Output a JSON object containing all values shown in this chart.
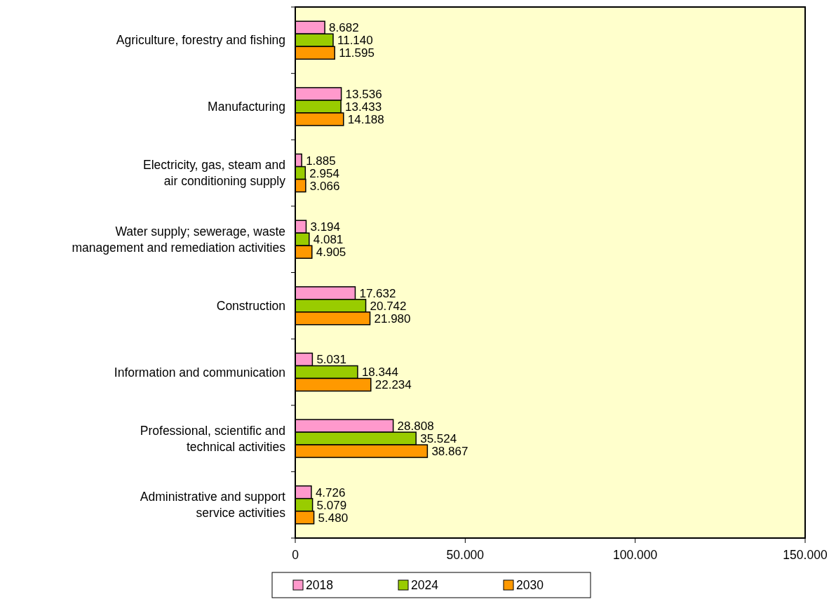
{
  "chart_data": {
    "type": "bar",
    "orientation": "horizontal",
    "categories": [
      "Agriculture, forestry and fishing",
      "Manufacturing",
      "Electricity, gas, steam and air conditioning supply",
      "Water supply; sewerage, waste management and remediation activities",
      "Construction",
      "Information and communication",
      "Professional, scientific and technical activities",
      "Administrative and support service activities"
    ],
    "series": [
      {
        "name": "2018",
        "color": "#ff99cc",
        "values": [
          8682,
          13536,
          1885,
          3194,
          17632,
          5031,
          28808,
          4726
        ],
        "value_labels": [
          "8.682",
          "13.536",
          "1.885",
          "3.194",
          "17.632",
          "5.031",
          "28.808",
          "4.726"
        ]
      },
      {
        "name": "2024",
        "color": "#99cc00",
        "values": [
          11140,
          13433,
          2954,
          4081,
          20742,
          18344,
          35524,
          5079
        ],
        "value_labels": [
          "11.140",
          "13.433",
          "2.954",
          "4.081",
          "20.742",
          "18.344",
          "35.524",
          "5.079"
        ]
      },
      {
        "name": "2030",
        "color": "#ff9900",
        "values": [
          11595,
          14188,
          3066,
          4905,
          21980,
          22234,
          38867,
          5480
        ],
        "value_labels": [
          "11.595",
          "14.188",
          "3.066",
          "4.905",
          "21.980",
          "22.234",
          "38.867",
          "5.480"
        ]
      }
    ],
    "xlim": [
      0,
      150000
    ],
    "xticks": [
      0,
      {
        "value": 50000,
        "label": "50.000"
      },
      {
        "value": 100000,
        "label": "100.000"
      },
      {
        "value": 150000,
        "label": "150.000"
      }
    ],
    "grid": false,
    "legend": "bottom"
  }
}
